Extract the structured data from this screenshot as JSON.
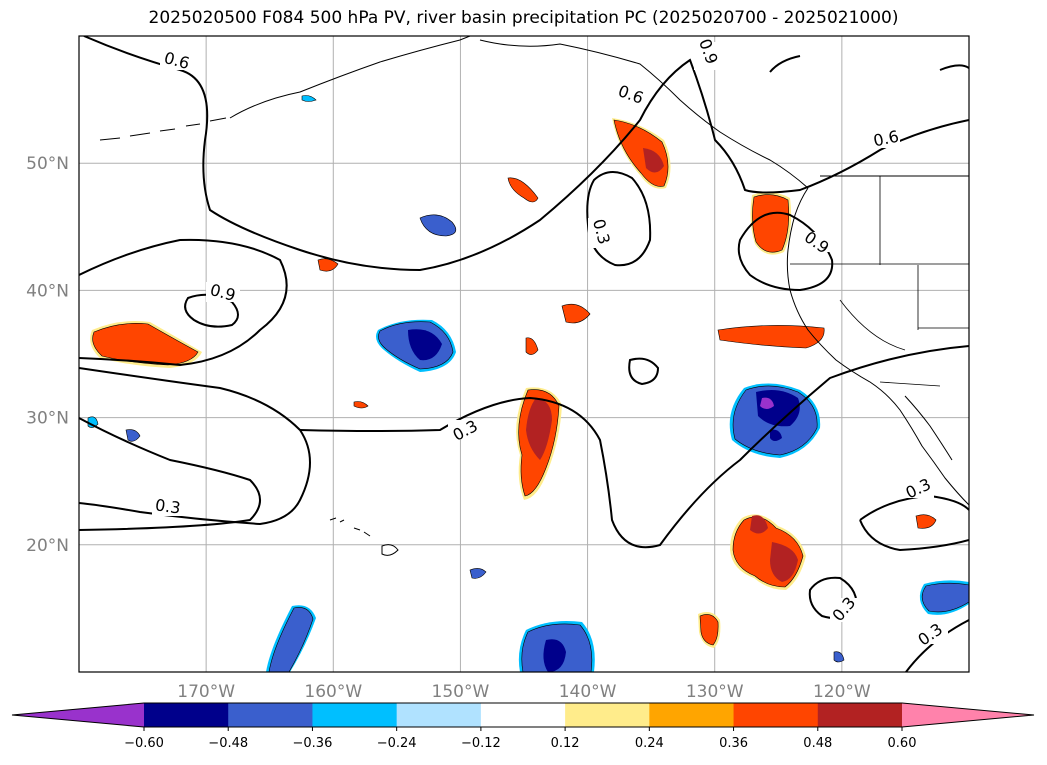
{
  "title": "2025020500 F084 500 hPa PV, river basin precipitation PC (2025020700 - 2025021000)",
  "map": {
    "lon_range": [
      -180,
      -110
    ],
    "lat_range": [
      10,
      60
    ],
    "lat_ticks": [
      {
        "value": 50,
        "label": "50°N"
      },
      {
        "value": 40,
        "label": "40°N"
      },
      {
        "value": 30,
        "label": "30°N"
      },
      {
        "value": 20,
        "label": "20°N"
      }
    ],
    "lon_ticks": [
      {
        "value": -170,
        "label": "170°W"
      },
      {
        "value": -160,
        "label": "160°W"
      },
      {
        "value": -150,
        "label": "150°W"
      },
      {
        "value": -140,
        "label": "140°W"
      },
      {
        "value": -130,
        "label": "130°W"
      },
      {
        "value": -120,
        "label": "120°W"
      }
    ],
    "contour_labels": [
      "0.6",
      "0.9",
      "0.3",
      "0.6",
      "0.9",
      "0.6",
      "0.9",
      "0.3",
      "0.3",
      "0.3",
      "0.3",
      "0.3"
    ]
  },
  "colorbar": {
    "colors": [
      "#9932cc",
      "#00008b",
      "#3a5fcd",
      "#00bfff",
      "#b0e2ff",
      "#ffffff",
      "#ffec8b",
      "#ffa500",
      "#ff4500",
      "#b22222",
      "#ff82ab"
    ],
    "labels": [
      "−0.60",
      "−0.48",
      "−0.36",
      "−0.24",
      "−0.12",
      "0.12",
      "0.24",
      "0.36",
      "0.48",
      "0.60"
    ]
  }
}
